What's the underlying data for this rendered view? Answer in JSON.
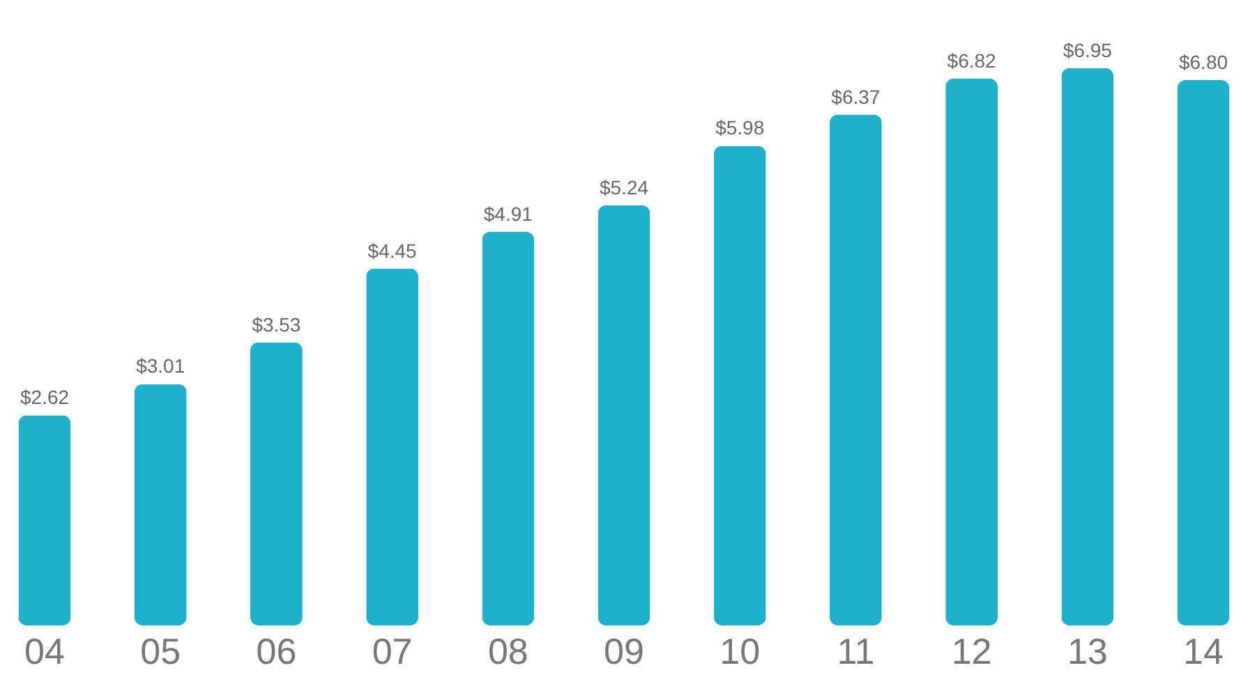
{
  "chart_data": {
    "type": "bar",
    "categories": [
      "04",
      "05",
      "06",
      "07",
      "08",
      "09",
      "10",
      "11",
      "12",
      "13",
      "14"
    ],
    "values": [
      2.62,
      3.01,
      3.53,
      4.45,
      4.91,
      5.24,
      5.98,
      6.37,
      6.82,
      6.95,
      6.8
    ],
    "value_labels": [
      "$2.62",
      "$3.01",
      "$3.53",
      "$4.45",
      "$4.91",
      "$5.24",
      "$5.98",
      "$6.37",
      "$6.82",
      "$6.95",
      "$6.80"
    ],
    "color": "#1fb1cb",
    "ylim": [
      0,
      7
    ],
    "tick_labels": "x",
    "grid": false
  }
}
